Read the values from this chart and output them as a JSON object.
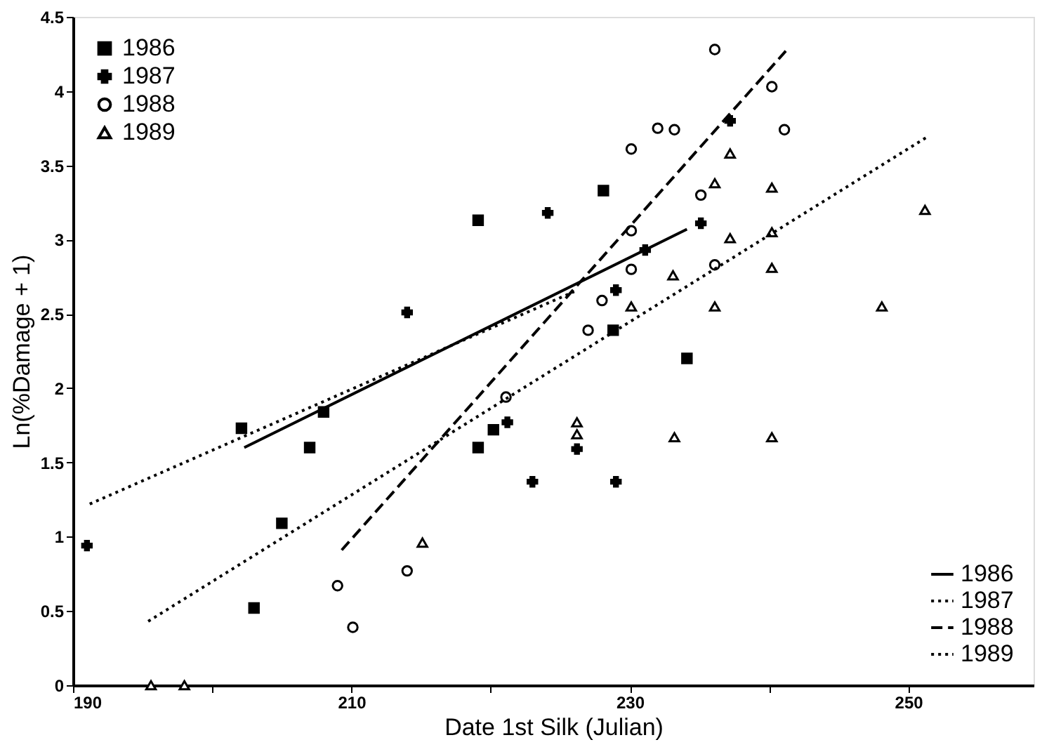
{
  "chart_data": {
    "type": "scatter",
    "xlabel": "Date 1st Silk (Julian)",
    "ylabel": "Ln(%Damage + 1)",
    "xlim": [
      190,
      259
    ],
    "xticks": [
      190,
      {
        "value": 200,
        "label": null
      },
      210,
      {
        "value": 220,
        "label": null
      },
      230,
      {
        "value": 240,
        "label": null
      },
      250
    ],
    "ylim": [
      0,
      4.5
    ],
    "yticks": [
      0,
      0.5,
      1,
      1.5,
      2,
      2.5,
      3,
      3.5,
      4,
      4.5
    ],
    "grid": false,
    "legend": "top left",
    "series": [
      {
        "name": "1986",
        "marker": "square",
        "color": "#000000",
        "x": [
          202.1,
          208.0,
          219.1,
          228.1,
          234.1,
          207.0,
          205.0,
          203.0,
          219.1,
          220.2,
          228.8
        ],
        "values": [
          1.73,
          1.84,
          3.13,
          3.33,
          2.2,
          1.6,
          1.09,
          0.52,
          1.6,
          1.72,
          2.39
        ]
      },
      {
        "name": "1987",
        "marker": "cross",
        "color": "#000000",
        "x": [
          191.0,
          214.0,
          224.1,
          235.1,
          237.2,
          229.0,
          221.2,
          223.0,
          226.2,
          229.0,
          231.1
        ],
        "values": [
          0.94,
          2.51,
          3.18,
          3.11,
          3.8,
          2.66,
          1.77,
          1.37,
          1.59,
          1.37,
          2.93
        ]
      },
      {
        "name": "1988",
        "marker": "circle",
        "color": "#000000",
        "x": [
          236.1,
          240.2,
          232.0,
          233.2,
          241.1,
          230.1,
          235.1,
          230.1,
          230.1,
          236.1,
          228.0,
          227.0,
          221.1,
          209.0,
          210.1,
          214.0
        ],
        "values": [
          4.28,
          4.03,
          3.75,
          3.74,
          3.74,
          3.61,
          3.3,
          3.06,
          2.8,
          2.83,
          2.59,
          2.39,
          1.94,
          0.67,
          0.39,
          0.77
        ]
      },
      {
        "name": "1989",
        "marker": "triangle",
        "color": "#000000",
        "x": [
          195.6,
          198.0,
          215.1,
          226.2,
          226.2,
          233.2,
          240.2,
          230.1,
          233.1,
          236.1,
          237.2,
          240.2,
          240.2,
          236.1,
          237.2,
          240.2,
          248.1,
          251.2
        ],
        "values": [
          0,
          0,
          0.96,
          1.77,
          1.69,
          1.67,
          1.67,
          2.55,
          2.76,
          2.55,
          3.01,
          3.05,
          2.81,
          3.38,
          3.58,
          3.35,
          2.55,
          3.2
        ]
      },
      {
        "name": "1986",
        "type": "line",
        "line_style": "solid",
        "color": "#000000",
        "x": [
          202.3,
          234.1
        ],
        "values": [
          1.6,
          3.07
        ]
      },
      {
        "name": "1987",
        "type": "line",
        "line_style": "dotted",
        "color": "#000000",
        "x": [
          191.2,
          226.0
        ],
        "values": [
          1.22,
          2.65
        ]
      },
      {
        "name": "1988",
        "type": "line",
        "line_style": "dashed",
        "color": "#000000",
        "x": [
          209.3,
          241.2
        ],
        "values": [
          0.91,
          4.27
        ]
      },
      {
        "name": "1989",
        "type": "line",
        "line_style": "dotted",
        "color": "#000000",
        "x": [
          195.4,
          251.5
        ],
        "values": [
          0.43,
          3.7
        ]
      }
    ]
  }
}
